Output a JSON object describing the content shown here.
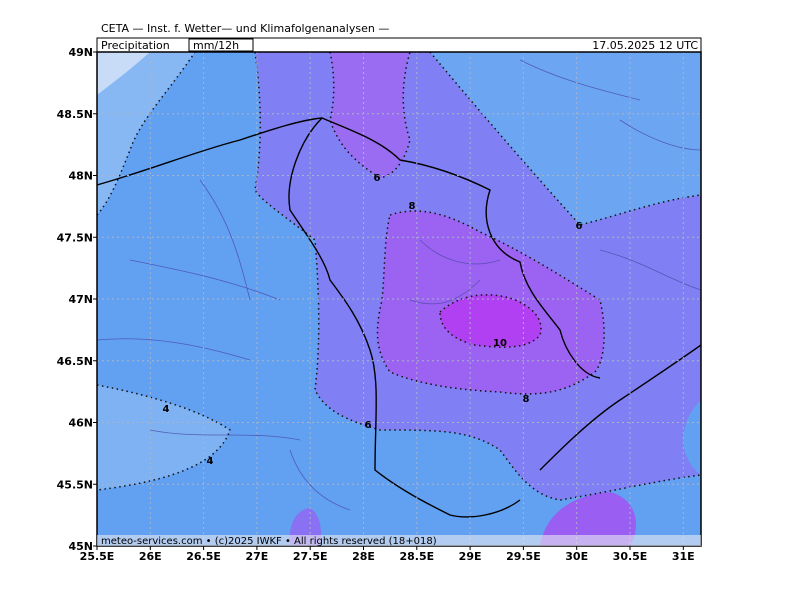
{
  "header": {
    "institute": "CETA — Inst. f. Wetter— und Klimafolgenanalysen —",
    "parameter": "Precipitation",
    "unit": "mm/12h",
    "valid_time": "17.05.2025 12 UTC"
  },
  "lon_ticks": [
    "25.5E",
    "26E",
    "26.5E",
    "27E",
    "27.5E",
    "28E",
    "28.5E",
    "29E",
    "29.5E",
    "30E",
    "30.5E",
    "31E"
  ],
  "lat_ticks": [
    "49N",
    "48.5N",
    "48N",
    "47.5N",
    "47N",
    "46.5N",
    "46N",
    "45.5N",
    "45N"
  ],
  "contour_labels": [
    "6",
    "8",
    "6",
    "10",
    "8",
    "6",
    "4",
    "4"
  ],
  "footer": "meteo-services.com • (c)2025 IWKF • All rights reserved (18+018)"
}
